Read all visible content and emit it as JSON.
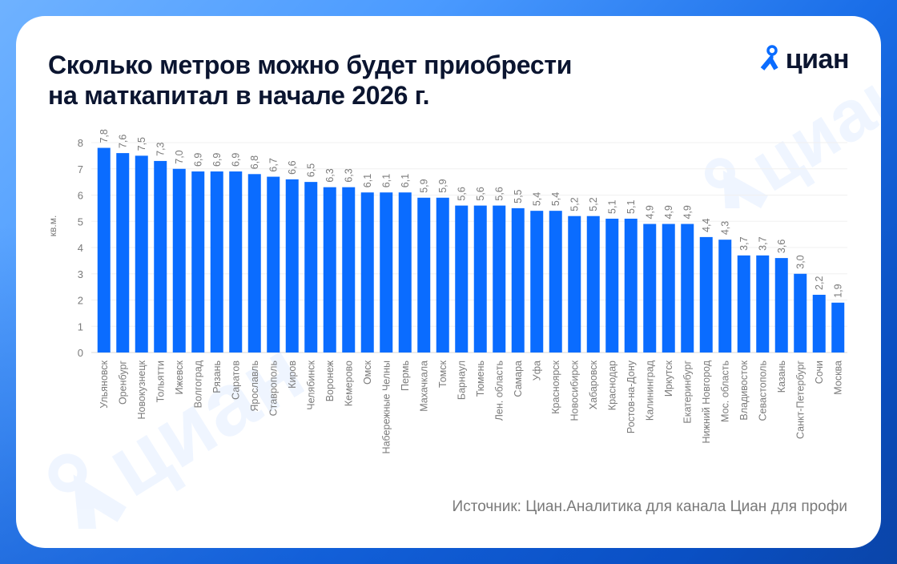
{
  "header": {
    "title_line1": "Сколько метров можно будет приобрести",
    "title_line2": "на маткапитал в начале 2026 г.",
    "logo_text": "циан",
    "watermark_text": "циан"
  },
  "footer": {
    "source": "Источник: Циан.Аналитика для канала Циан для профи"
  },
  "colors": {
    "bar": "#0a6cff",
    "accent": "#0a6cff",
    "title": "#0b1530",
    "label": "#7a7a7a"
  },
  "chart_data": {
    "type": "bar",
    "title": "Сколько метров можно будет приобрести на маткапитал в начале 2026 г.",
    "xlabel": "",
    "ylabel": "кв.м.",
    "ylim": [
      0,
      8
    ],
    "yticks": [
      "0",
      "1",
      "2",
      "3",
      "4",
      "5",
      "6",
      "7",
      "8"
    ],
    "grid": true,
    "categories": [
      "Ульяновск",
      "Оренбург",
      "Новокузнецк",
      "Тольятти",
      "Ижевск",
      "Волгоград",
      "Рязань",
      "Саратов",
      "Ярославль",
      "Ставрополь",
      "Киров",
      "Челябинск",
      "Воронеж",
      "Кемерово",
      "Омск",
      "Набережные Челны",
      "Пермь",
      "Махачкала",
      "Томск",
      "Барнаул",
      "Тюмень",
      "Лен. область",
      "Самара",
      "Уфа",
      "Красноярск",
      "Новосибирск",
      "Хабаровск",
      "Краснодар",
      "Ростов-на-Дону",
      "Калининград",
      "Иркутск",
      "Екатеринбург",
      "Нижний Новгород",
      "Мос. область",
      "Владивосток",
      "Севастополь",
      "Казань",
      "Санкт-Петербург",
      "Сочи",
      "Москва"
    ],
    "values": [
      7.8,
      7.6,
      7.5,
      7.3,
      7.0,
      6.9,
      6.9,
      6.9,
      6.8,
      6.7,
      6.6,
      6.5,
      6.3,
      6.3,
      6.1,
      6.1,
      6.1,
      5.9,
      5.9,
      5.6,
      5.6,
      5.6,
      5.5,
      5.4,
      5.4,
      5.2,
      5.2,
      5.1,
      5.1,
      4.9,
      4.9,
      4.9,
      4.4,
      4.3,
      3.7,
      3.7,
      3.6,
      3.0,
      2.2,
      1.9
    ],
    "labels": [
      "7,8",
      "7,6",
      "7,5",
      "7,3",
      "7,0",
      "6,9",
      "6,9",
      "6,9",
      "6,8",
      "6,7",
      "6,6",
      "6,5",
      "6,3",
      "6,3",
      "6,1",
      "6,1",
      "6,1",
      "5,9",
      "5,9",
      "5,6",
      "5,6",
      "5,6",
      "5,5",
      "5,4",
      "5,4",
      "5,2",
      "5,2",
      "5,1",
      "5,1",
      "4,9",
      "4,9",
      "4,9",
      "4,4",
      "4,3",
      "3,7",
      "3,7",
      "3,6",
      "3,0",
      "2,2",
      "1,9"
    ]
  }
}
